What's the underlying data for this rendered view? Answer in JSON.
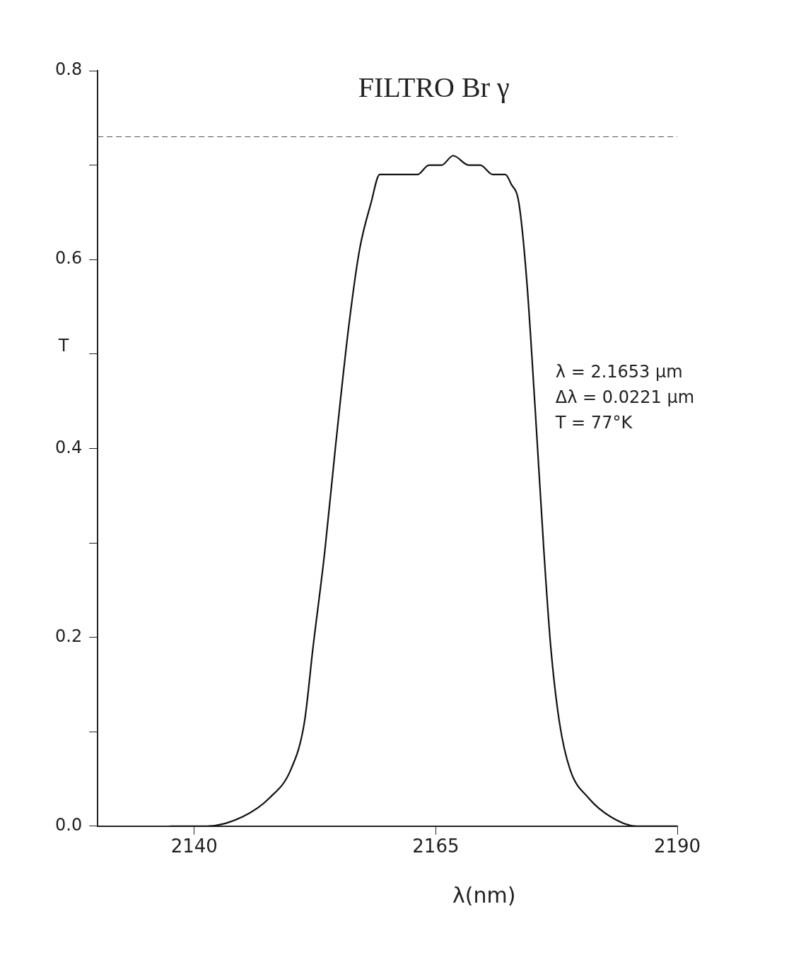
{
  "chart_data": {
    "type": "line",
    "title": "FILTRO Br γ",
    "xlabel": "λ(nm)",
    "ylabel": "T",
    "x": [
      2137.5,
      2141.3,
      2145.0,
      2147.8,
      2150.0,
      2151.4,
      2152.3,
      2153.5,
      2154.6,
      2156.0,
      2157.1,
      2158.3,
      2159.2,
      2160.6,
      2162.0,
      2163.1,
      2164.3,
      2165.6,
      2166.8,
      2168.4,
      2169.6,
      2170.9,
      2172.2,
      2172.8,
      2173.6,
      2174.4,
      2175.3,
      2176.2,
      2176.9,
      2177.8,
      2178.9,
      2180.8,
      2183.1,
      2185.8,
      2190.0
    ],
    "series": [
      {
        "color": "#111111",
        "values": [
          0.0,
          0.0,
          0.01,
          0.03,
          0.06,
          0.11,
          0.19,
          0.29,
          0.4,
          0.53,
          0.61,
          0.66,
          0.69,
          0.69,
          0.69,
          0.69,
          0.7,
          0.7,
          0.71,
          0.7,
          0.7,
          0.69,
          0.69,
          0.68,
          0.66,
          0.58,
          0.44,
          0.29,
          0.19,
          0.11,
          0.06,
          0.03,
          0.01,
          0.0,
          0.0
        ]
      }
    ],
    "xlim": [
      2130,
      2190
    ],
    "xticks": [
      2140,
      2165,
      2190
    ],
    "ylim": [
      0,
      0.8
    ],
    "yticks": [
      {
        "value": 0,
        "label": "0.0"
      },
      {
        "value": 0.1,
        "label": null
      },
      0.2,
      {
        "value": 0.3,
        "label": null
      },
      0.4,
      {
        "value": 0.5,
        "label": null
      },
      0.6,
      {
        "value": 0.7,
        "label": null
      },
      0.8
    ],
    "ref_lines": [
      {
        "axis": "y",
        "value": 0.73,
        "line_style": "dashed",
        "color": "#555555"
      }
    ],
    "annotations": [
      "λ = 2.1653 μm",
      "Δλ = 0.0221 μm",
      "T = 77°K"
    ],
    "grid": false,
    "legend": false,
    "marker": "none",
    "line_style": "solid"
  }
}
